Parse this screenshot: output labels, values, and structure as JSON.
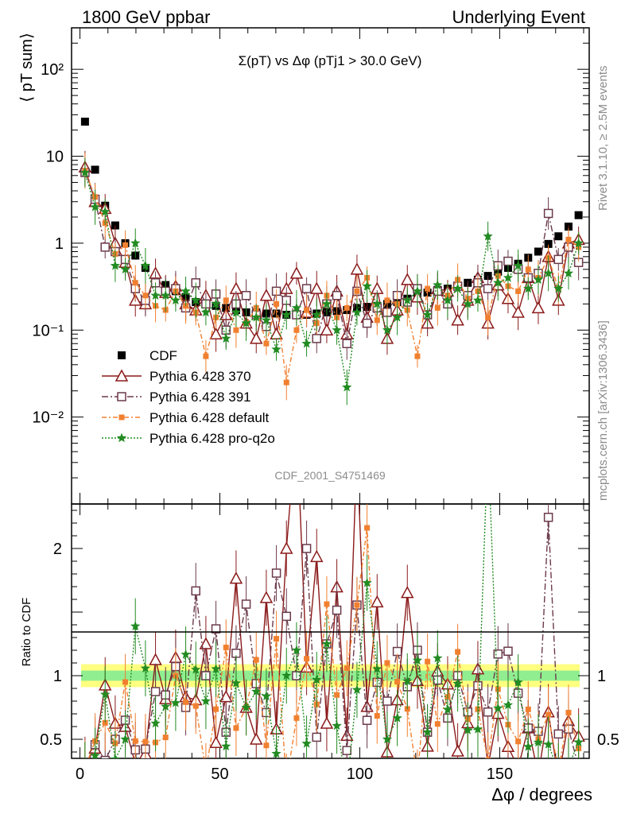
{
  "header": {
    "left": "1800 GeV ppbar",
    "right": "Underlying Event"
  },
  "side_text": {
    "rivet": "Rivet 3.1.10, ≥ 2.5M events",
    "mcplots": "mcplots.cern.ch [arXiv:1306.3436]"
  },
  "watermark": "CDF_2001_S4751469",
  "chart_data": [
    {
      "type": "scatter",
      "panel": "main",
      "title": "Σ(pT) vs Δφ (pTj1 > 30.0 GeV)",
      "ylabel": "⟨ pT sum⟩",
      "yscale": "log",
      "ylim": [
        0.001,
        300
      ],
      "xlim": [
        -3,
        182
      ],
      "ytick_labels": [
        "10⁻²",
        "10⁻¹",
        "1",
        "10",
        "10²"
      ],
      "legend_position": "bottom-left",
      "x": [
        1.8,
        5.4,
        9,
        12.6,
        16.2,
        19.8,
        23.4,
        27,
        30.6,
        34.2,
        37.8,
        41.4,
        45,
        48.6,
        52.2,
        55.8,
        59.4,
        63,
        66.6,
        70.2,
        73.8,
        77.4,
        81,
        84.6,
        88.2,
        91.8,
        95.4,
        99,
        102.6,
        106.2,
        109.8,
        113.4,
        117,
        120.6,
        124.2,
        127.8,
        131.4,
        135,
        138.6,
        142.2,
        145.8,
        149.4,
        153,
        156.6,
        160.2,
        163.8,
        167.4,
        171,
        174.6,
        178.2
      ],
      "series": [
        {
          "name": "CDF",
          "color": "#000000",
          "marker": "filled-square",
          "values": [
            25,
            7,
            2.7,
            1.6,
            1.0,
            0.72,
            0.52,
            0.4,
            0.33,
            0.28,
            0.24,
            0.21,
            0.2,
            0.19,
            0.18,
            0.17,
            0.16,
            0.16,
            0.155,
            0.155,
            0.15,
            0.15,
            0.15,
            0.155,
            0.16,
            0.165,
            0.17,
            0.18,
            0.185,
            0.19,
            0.2,
            0.21,
            0.23,
            0.25,
            0.27,
            0.29,
            0.3,
            0.32,
            0.35,
            0.38,
            0.42,
            0.47,
            0.52,
            0.58,
            0.68,
            0.8,
            0.98,
            1.2,
            1.55,
            2.1
          ]
        },
        {
          "name": "Pythia 6.428 370",
          "color": "#8b1a1a",
          "marker": "open-triangle",
          "values": [
            7.5,
            3,
            2.5,
            1,
            0.6,
            0.22,
            0.2,
            0.45,
            0.27,
            0.32,
            0.2,
            0.17,
            0.25,
            0.09,
            0.15,
            0.3,
            0.12,
            0.08,
            0.25,
            0.09,
            0.3,
            0.45,
            0.16,
            0.3,
            0.1,
            0.28,
            0.09,
            0.5,
            0.14,
            0.3,
            0.08,
            0.17,
            0.38,
            0.24,
            0.12,
            0.3,
            0.28,
            0.13,
            0.22,
            0.4,
            0.12,
            0.33,
            0.23,
            0.16,
            0.4,
            0.18,
            0.7,
            0.22,
            1.0,
            1.1
          ]
        },
        {
          "name": "Pythia 6.428 391",
          "color": "#6b3a4a",
          "marker": "open-square",
          "values": [
            6.5,
            3.2,
            0.9,
            0.8,
            0.65,
            0.3,
            0.22,
            0.35,
            0.28,
            0.3,
            0.18,
            0.35,
            0.2,
            0.26,
            0.1,
            0.2,
            0.25,
            0.15,
            0.11,
            0.28,
            0.22,
            0.15,
            0.3,
            0.08,
            0.2,
            0.25,
            0.07,
            0.28,
            0.12,
            0.18,
            0.16,
            0.25,
            0.21,
            0.3,
            0.15,
            0.28,
            0.2,
            0.32,
            0.25,
            0.35,
            0.3,
            0.55,
            0.62,
            0.5,
            0.4,
            0.45,
            2.2,
            0.65,
            0.9,
            0.6
          ]
        },
        {
          "name": "Pythia 6.428 default",
          "color": "#f08030",
          "marker": "filled-square-small",
          "values": [
            6.8,
            3.4,
            1.7,
            0.75,
            0.95,
            0.35,
            0.25,
            0.19,
            0.17,
            0.28,
            0.19,
            0.16,
            0.05,
            0.14,
            0.22,
            0.1,
            0.12,
            0.18,
            0.07,
            0.2,
            0.025,
            0.1,
            0.17,
            0.12,
            0.25,
            0.14,
            0.18,
            0.28,
            0.4,
            0.13,
            0.22,
            0.2,
            0.17,
            0.05,
            0.3,
            0.18,
            0.25,
            0.38,
            0.23,
            0.28,
            0.14,
            0.42,
            0.32,
            0.28,
            0.5,
            0.4,
            0.68,
            0.3,
            1.1,
            0.9
          ]
        },
        {
          "name": "Pythia 6.428 pro-q2o",
          "color": "#228b22",
          "marker": "star",
          "values": [
            6.5,
            2.6,
            2.3,
            0.55,
            0.5,
            1.0,
            0.55,
            0.25,
            0.25,
            0.22,
            0.28,
            0.22,
            0.16,
            0.2,
            0.08,
            0.16,
            0.12,
            0.14,
            0.13,
            0.06,
            0.15,
            0.18,
            0.07,
            0.15,
            0.2,
            0.1,
            0.022,
            0.16,
            0.32,
            0.2,
            0.1,
            0.14,
            0.22,
            0.28,
            0.15,
            0.33,
            0.22,
            0.3,
            0.2,
            0.22,
            1.2,
            0.35,
            0.4,
            0.55,
            0.3,
            0.38,
            0.45,
            0.3,
            0.45,
            1.0
          ]
        }
      ]
    },
    {
      "type": "scatter",
      "panel": "ratio",
      "ylabel": "Ratio to CDF",
      "xlabel": "Δφ / degrees",
      "ylim": [
        0.35,
        2.35
      ],
      "xlim": [
        -3,
        182
      ],
      "x_ticks": [
        0,
        50,
        100,
        150
      ],
      "y_ticks": [
        0.5,
        1,
        2
      ],
      "reference": 1,
      "band_colors": {
        "inner": "#90ee90",
        "outer": "#ffff80"
      }
    }
  ]
}
